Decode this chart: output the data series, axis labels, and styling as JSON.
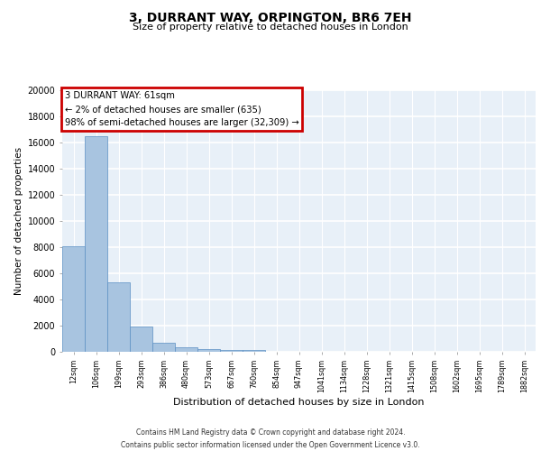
{
  "title": "3, DURRANT WAY, ORPINGTON, BR6 7EH",
  "subtitle": "Size of property relative to detached houses in London",
  "xlabel": "Distribution of detached houses by size in London",
  "ylabel": "Number of detached properties",
  "categories": [
    "12sqm",
    "106sqm",
    "199sqm",
    "293sqm",
    "386sqm",
    "480sqm",
    "573sqm",
    "667sqm",
    "760sqm",
    "854sqm",
    "947sqm",
    "1041sqm",
    "1134sqm",
    "1228sqm",
    "1321sqm",
    "1415sqm",
    "1508sqm",
    "1602sqm",
    "1695sqm",
    "1789sqm",
    "1882sqm"
  ],
  "values": [
    8100,
    16500,
    5300,
    1900,
    700,
    320,
    200,
    170,
    150,
    0,
    0,
    0,
    0,
    0,
    0,
    0,
    0,
    0,
    0,
    0,
    0
  ],
  "bar_color": "#a8c4e0",
  "bar_edge_color": "#5b8fc4",
  "annotation_text": "3 DURRANT WAY: 61sqm\n← 2% of detached houses are smaller (635)\n98% of semi-detached houses are larger (32,309) →",
  "annotation_box_color": "#ffffff",
  "annotation_box_edge_color": "#cc0000",
  "ylim": [
    0,
    20000
  ],
  "yticks": [
    0,
    2000,
    4000,
    6000,
    8000,
    10000,
    12000,
    14000,
    16000,
    18000,
    20000
  ],
  "bg_color": "#e8f0f8",
  "grid_color": "#ffffff",
  "footer_line1": "Contains HM Land Registry data © Crown copyright and database right 2024.",
  "footer_line2": "Contains public sector information licensed under the Open Government Licence v3.0."
}
